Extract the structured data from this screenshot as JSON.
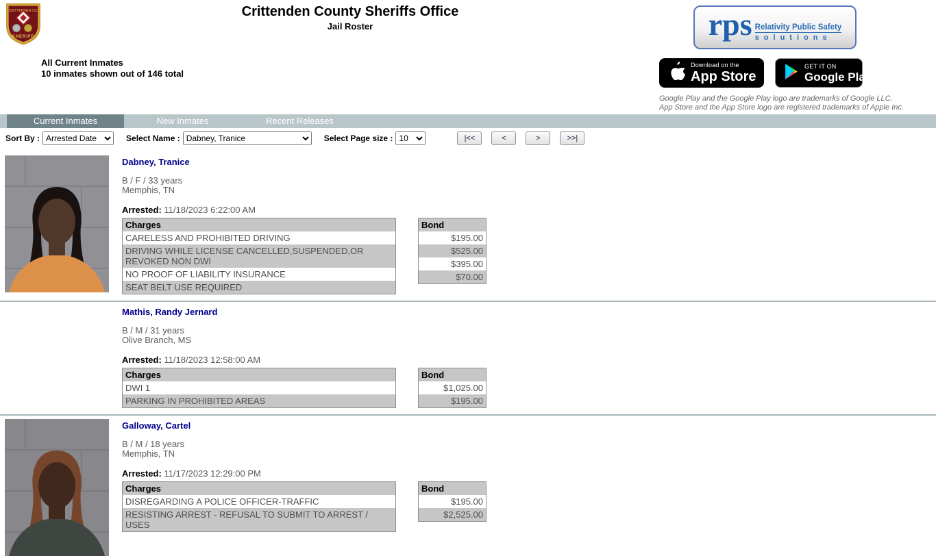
{
  "header": {
    "title": "Crittenden County Sheriffs Office",
    "subtitle": "Jail Roster",
    "summary_title": "All Current Inmates",
    "summary_count": "10 inmates shown out of 146 total"
  },
  "rps": {
    "name": "rps",
    "tagline1": "Relativity Public Safety",
    "tagline2": "solutions"
  },
  "badges": {
    "appstore_line1": "Download on the",
    "appstore_line2": "App Store",
    "googleplay_line1": "GET IT ON",
    "googleplay_line2": "Google Play",
    "disclaimer1": "Google Play and the Google Play logo are trademarks of Google LLC.",
    "disclaimer2": "App Store and the App Store logo are registered trademarks of Apple Inc."
  },
  "tabs": [
    {
      "label": "Current Inmates",
      "active": true
    },
    {
      "label": "New Inmates",
      "active": false
    },
    {
      "label": "Recent Releases",
      "active": false
    }
  ],
  "toolbar": {
    "sort_by_label": "Sort By :",
    "sort_by_value": "Arrested Date",
    "select_name_label": "Select Name :",
    "select_name_value": "Dabney, Tranice",
    "page_size_label": "Select Page size :",
    "page_size_value": "10",
    "pager": {
      "first": "|<<",
      "prev": "<",
      "next": ">",
      "last": ">>|"
    }
  },
  "table_headers": {
    "charges": "Charges",
    "bond": "Bond"
  },
  "arrested_label": "Arrested:",
  "colors": {
    "nav_bar": "#b9c6c9",
    "nav_active_tab": "#6f8389",
    "name_link": "#00008b",
    "table_gray": "#c6c6c6",
    "rps_blue": "#1e5fae"
  },
  "inmates": [
    {
      "name": "Dabney, Tranice",
      "demographics": "B / F / 33 years",
      "city": "Memphis, TN",
      "arrested": "11/18/2023 6:22:00 AM",
      "photo": {
        "present": true,
        "wall": "#919195",
        "wall_line": "#7d7d82",
        "skin": "#4f3729",
        "hair": "#18110f",
        "shirt": "#dd9049"
      },
      "charges": [
        {
          "charge": "CARELESS AND PROHIBITED DRIVING",
          "bond": "$195.00"
        },
        {
          "charge": "DRIVING WHILE LICENSE CANCELLED,SUSPENDED,OR REVOKED NON DWI",
          "bond": "$525.00"
        },
        {
          "charge": "NO PROOF OF LIABILITY INSURANCE",
          "bond": "$395.00"
        },
        {
          "charge": "SEAT BELT USE REQUIRED",
          "bond": "$70.00"
        }
      ]
    },
    {
      "name": "Mathis, Randy Jernard",
      "demographics": "B / M / 31 years",
      "city": "Olive Branch, MS",
      "arrested": "11/18/2023 12:58:00 AM",
      "photo": {
        "present": false
      },
      "charges": [
        {
          "charge": "DWI 1",
          "bond": "$1,025.00"
        },
        {
          "charge": "PARKING IN PROHIBITED AREAS",
          "bond": "$195.00"
        }
      ]
    },
    {
      "name": "Galloway, Cartel",
      "demographics": "B / M / 18 years",
      "city": "Memphis, TN",
      "arrested": "11/17/2023 12:29:00 PM",
      "photo": {
        "present": true,
        "wall": "#88888c",
        "wall_line": "#75757b",
        "skin": "#40291c",
        "hair": "#77452c",
        "shirt": "#3f4540"
      },
      "charges": [
        {
          "charge": "DISREGARDING A POLICE OFFICER-TRAFFIC",
          "bond": "$195.00"
        },
        {
          "charge": "RESISTING ARREST - REFUSAL TO SUBMIT TO ARREST / USES",
          "bond": "$2,525.00"
        }
      ]
    }
  ]
}
